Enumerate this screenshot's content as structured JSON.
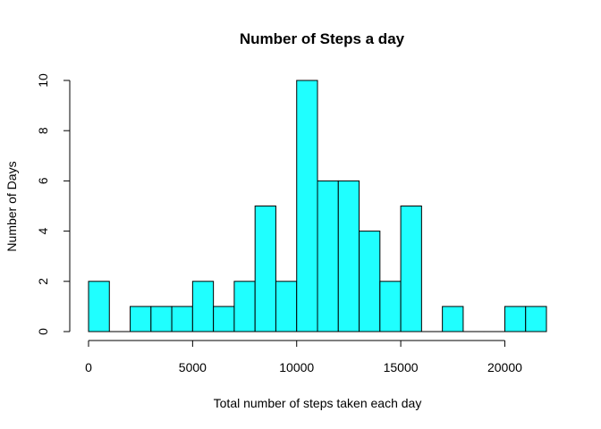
{
  "chart_data": {
    "type": "bar",
    "title": "Number of Steps a day",
    "xlabel": "Total number of steps taken each day",
    "ylabel": "Number of Days",
    "bin_width": 1000,
    "bins": [
      [
        0,
        1000
      ],
      [
        1000,
        2000
      ],
      [
        2000,
        3000
      ],
      [
        3000,
        4000
      ],
      [
        4000,
        5000
      ],
      [
        5000,
        6000
      ],
      [
        6000,
        7000
      ],
      [
        7000,
        8000
      ],
      [
        8000,
        9000
      ],
      [
        9000,
        10000
      ],
      [
        10000,
        11000
      ],
      [
        11000,
        12000
      ],
      [
        12000,
        13000
      ],
      [
        13000,
        14000
      ],
      [
        14000,
        15000
      ],
      [
        15000,
        16000
      ],
      [
        16000,
        17000
      ],
      [
        17000,
        18000
      ],
      [
        18000,
        19000
      ],
      [
        19000,
        20000
      ],
      [
        20000,
        21000
      ],
      [
        21000,
        22000
      ]
    ],
    "values": [
      2,
      0,
      1,
      1,
      1,
      2,
      1,
      2,
      5,
      2,
      10,
      6,
      6,
      4,
      2,
      5,
      0,
      1,
      0,
      0,
      1,
      1
    ],
    "xlim": [
      0,
      22000
    ],
    "ylim": [
      0,
      10
    ],
    "xticks": [
      0,
      5000,
      10000,
      15000,
      20000
    ],
    "xtick_labels": [
      "0",
      "5000",
      "10000",
      "15000",
      "20000"
    ],
    "yticks": [
      0,
      2,
      4,
      6,
      8,
      10
    ],
    "ytick_labels": [
      "0",
      "2",
      "4",
      "6",
      "8",
      "10"
    ],
    "bar_color": "#1fffff",
    "edge_color": "#000000",
    "grid": false,
    "legend": "none"
  }
}
